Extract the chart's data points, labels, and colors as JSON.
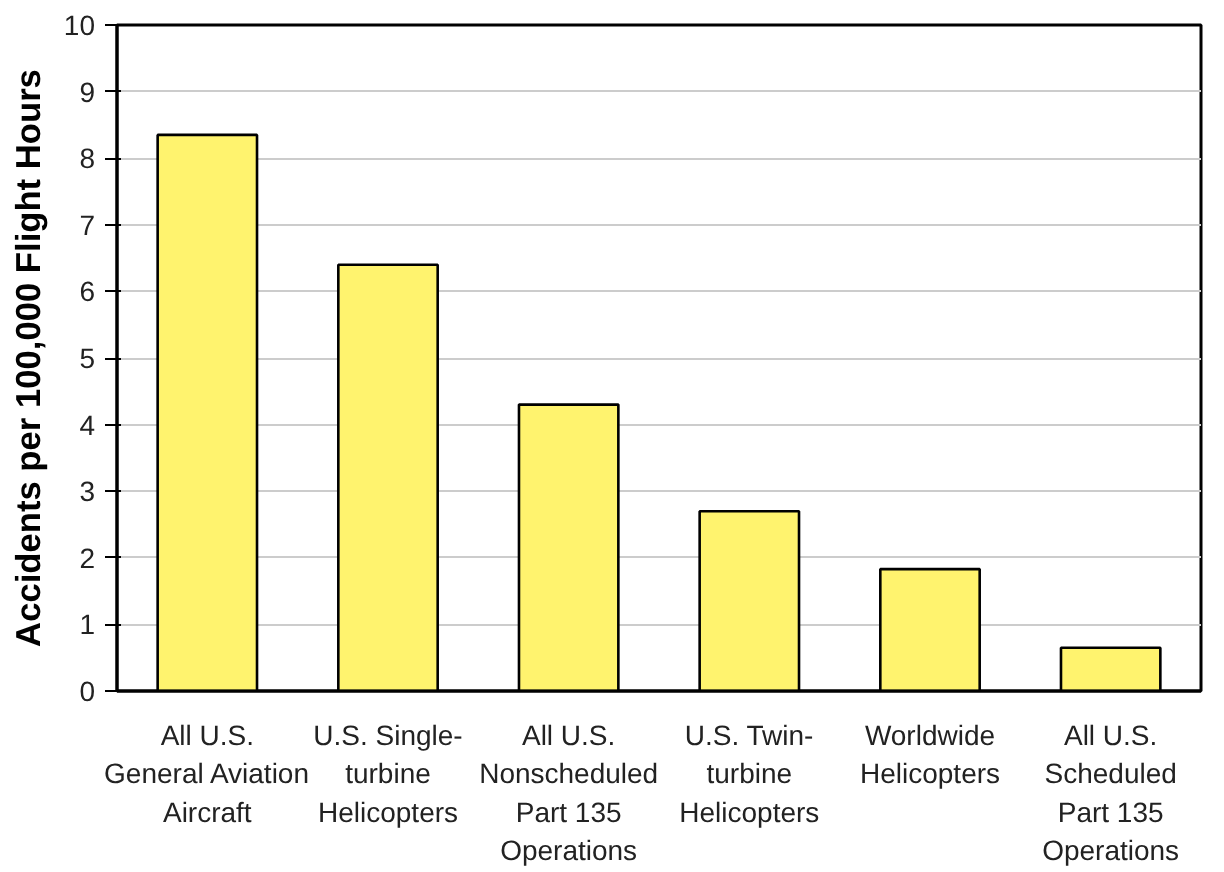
{
  "chart_data": {
    "type": "bar",
    "ylabel": "Accidents per 100,000 Flight Hours",
    "categories": [
      "All U.S.\nGeneral Aviation\nAircraft",
      "U.S. Single-\nturbine\nHelicopters",
      "All U.S.\nNonscheduled\nPart 135\nOperations",
      "U.S. Twin-\nturbine\nHelicopters",
      "Worldwide\nHelicopters",
      "All U.S.\nScheduled\nPart 135\nOperations"
    ],
    "values": [
      8.35,
      6.4,
      4.3,
      2.7,
      1.83,
      0.65
    ],
    "color": "#fff36e",
    "ylim": [
      0,
      10
    ],
    "yticks": [
      0,
      1,
      2,
      3,
      4,
      5,
      6,
      7,
      8,
      9,
      10
    ],
    "grid": "y"
  }
}
